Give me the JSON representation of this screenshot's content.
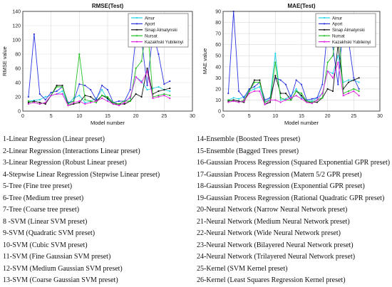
{
  "chart_data": [
    {
      "type": "line",
      "title": "RMSE(Test)",
      "xlabel": "Model number",
      "ylabel": "RMSE value",
      "xlim": [
        0,
        30
      ],
      "ylim": [
        0,
        140
      ],
      "xticks": [
        0,
        5,
        10,
        15,
        20,
        25,
        30
      ],
      "yticks": [
        0,
        20,
        40,
        60,
        80,
        100,
        120,
        140
      ],
      "grid": true,
      "legend_position": "top-right",
      "x": [
        1,
        2,
        3,
        4,
        5,
        6,
        7,
        8,
        9,
        10,
        11,
        12,
        13,
        14,
        15,
        16,
        17,
        18,
        19,
        20,
        21,
        22,
        23,
        24,
        25,
        26
      ],
      "series": [
        {
          "name": "Ainur",
          "color": "#22d3e6",
          "values": [
            14,
            15,
            16,
            20,
            22,
            24,
            28,
            10,
            18,
            22,
            12,
            14,
            18,
            30,
            16,
            12,
            10,
            14,
            18,
            48,
            42,
            30,
            32,
            34,
            30,
            28
          ]
        },
        {
          "name": "Aport",
          "color": "#2b35e0",
          "values": [
            20,
            108,
            24,
            16,
            26,
            28,
            34,
            12,
            14,
            38,
            36,
            30,
            16,
            36,
            30,
            12,
            14,
            14,
            30,
            104,
            100,
            36,
            110,
            80,
            38,
            42
          ]
        },
        {
          "name": "Sinap Almatynski",
          "color": "#111111",
          "values": [
            12,
            14,
            12,
            10,
            22,
            36,
            36,
            8,
            10,
            12,
            22,
            20,
            14,
            22,
            18,
            10,
            10,
            10,
            14,
            24,
            20,
            60,
            24,
            28,
            30,
            32
          ]
        },
        {
          "name": "Nursat",
          "color": "#22c022",
          "values": [
            14,
            12,
            10,
            12,
            22,
            34,
            34,
            10,
            14,
            80,
            16,
            14,
            12,
            22,
            20,
            12,
            10,
            14,
            14,
            60,
            70,
            126,
            20,
            22,
            24,
            22
          ]
        },
        {
          "name": "Kazakhski Yubileinyi",
          "color": "#e020e0",
          "values": [
            10,
            12,
            10,
            12,
            22,
            24,
            24,
            8,
            12,
            14,
            10,
            12,
            14,
            18,
            14,
            10,
            8,
            12,
            20,
            48,
            40,
            56,
            18,
            20,
            22,
            18
          ]
        }
      ]
    },
    {
      "type": "line",
      "title": "MAE(Test)",
      "xlabel": "Model number",
      "ylabel": "MAE value",
      "xlim": [
        0,
        30
      ],
      "ylim": [
        0,
        90
      ],
      "xticks": [
        0,
        5,
        10,
        15,
        20,
        25,
        30
      ],
      "yticks": [
        0,
        10,
        20,
        30,
        40,
        50,
        60,
        70,
        80,
        90
      ],
      "grid": true,
      "legend_position": "top-right",
      "x": [
        1,
        2,
        3,
        4,
        5,
        6,
        7,
        8,
        9,
        10,
        11,
        12,
        13,
        14,
        15,
        16,
        17,
        18,
        19,
        20,
        21,
        22,
        23,
        24,
        25,
        26
      ],
      "series": [
        {
          "name": "Ainur",
          "color": "#22d3e6",
          "values": [
            10,
            12,
            11,
            13,
            18,
            20,
            22,
            8,
            12,
            52,
            10,
            11,
            14,
            20,
            12,
            10,
            9,
            12,
            16,
            36,
            34,
            50,
            26,
            28,
            28,
            26
          ]
        },
        {
          "name": "Aport",
          "color": "#2b35e0",
          "values": [
            16,
            90,
            18,
            12,
            20,
            22,
            26,
            10,
            12,
            30,
            28,
            24,
            12,
            28,
            24,
            10,
            11,
            12,
            24,
            75,
            58,
            24,
            80,
            64,
            30,
            20
          ]
        },
        {
          "name": "Sinap Almatynski",
          "color": "#111111",
          "values": [
            9,
            10,
            9,
            8,
            18,
            28,
            28,
            6,
            8,
            32,
            16,
            16,
            10,
            18,
            14,
            8,
            8,
            8,
            12,
            20,
            18,
            60,
            20,
            26,
            28,
            30
          ]
        },
        {
          "name": "Nursat",
          "color": "#22c022",
          "values": [
            10,
            9,
            8,
            10,
            18,
            26,
            26,
            8,
            10,
            44,
            12,
            10,
            10,
            18,
            16,
            9,
            8,
            10,
            12,
            44,
            50,
            82,
            16,
            18,
            20,
            18
          ]
        },
        {
          "name": "Kazakhski Yubileinyi",
          "color": "#e020e0",
          "values": [
            8,
            9,
            8,
            9,
            16,
            18,
            18,
            6,
            10,
            10,
            8,
            10,
            12,
            14,
            11,
            8,
            7,
            10,
            16,
            36,
            30,
            44,
            14,
            16,
            18,
            14
          ]
        }
      ]
    }
  ],
  "legend_list": {
    "left": [
      "1-Linear Regression (Linear preset)",
      "2-Linear Regression (Interactions Linear preset)",
      "3-Linear Regression (Robust Linear preset)",
      "4-Stepwise Linear Regression (Stepwise Linear preset)",
      "5-Tree (Fine tree preset)",
      "6-Tree (Medium tree preset)",
      "7-Tree (Coarse tree preset)",
      "8 -SVM (Linear SVM preset)",
      "9-SVM (Quadratic SVM preset)",
      "10-SVM (Cubic SVM preset)",
      "11-SVM (Fine Gaussian SVM preset)",
      "12-SVM (Medium Gaussian SVM preset)",
      "13-SVM (Coarse Gaussian SVM preset)"
    ],
    "right": [
      "14-Ensemble (Boosted Trees preset)",
      "15-Ensemble (Bagged Trees preset)",
      "16-Gaussian Process Regression (Squared Exponential GPR preset)",
      "17-Gaussian Process Regression (Matern 5/2 GPR preset)",
      "18-Gaussian Process Regression (Exponential GPR preset)",
      "19-Gaussian Process Regression (Rational Quadratic GPR preset)",
      "20-Neural Network (Narrow Neural Network preset)",
      "21-Neural Network (Medium Neural Network preset)",
      "22-Neural Network (Wide Neural Network preset)",
      "23-Neural Network (Bilayered Neural Network preset)",
      "24-Neural Network (Trilayered Neural Network preset)",
      "25-Kernel (SVM Kernel preset)",
      "26-Kernel (Least Squares Regression Kernel preset)"
    ]
  }
}
